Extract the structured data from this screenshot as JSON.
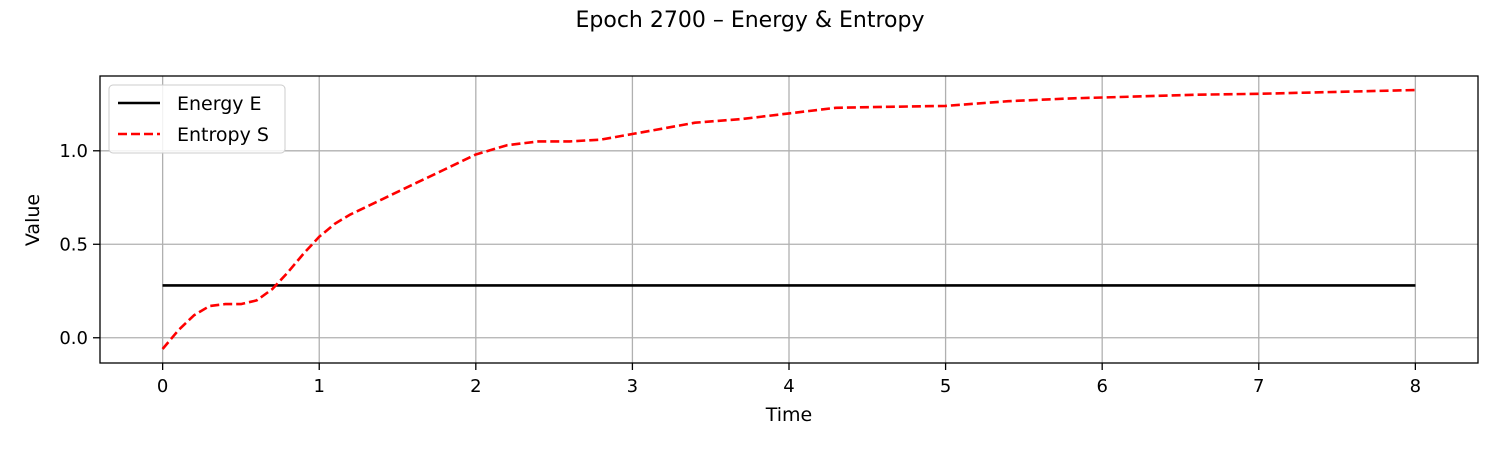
{
  "chart_data": {
    "type": "line",
    "title": "Epoch 2700 – Energy & Entropy",
    "xlabel": "Time",
    "ylabel": "Value",
    "xlim": [
      -0.4,
      8.4
    ],
    "ylim": [
      -0.135,
      1.4
    ],
    "xticks": [
      0,
      1,
      2,
      3,
      4,
      5,
      6,
      7,
      8
    ],
    "xtick_labels": [
      "0",
      "1",
      "2",
      "3",
      "4",
      "5",
      "6",
      "7",
      "8"
    ],
    "yticks": [
      0.0,
      0.5,
      1.0
    ],
    "ytick_labels": [
      "0.0",
      "0.5",
      "1.0"
    ],
    "grid": true,
    "legend_position": "upper left",
    "series": [
      {
        "name": "Energy E",
        "color": "#000000",
        "linestyle": "solid",
        "x": [
          0,
          8
        ],
        "y": [
          0.28,
          0.28
        ]
      },
      {
        "name": "Entropy S",
        "color": "#ff0000",
        "linestyle": "dashed",
        "x": [
          0,
          0.1,
          0.2,
          0.3,
          0.4,
          0.5,
          0.6,
          0.7,
          0.8,
          0.9,
          1.0,
          1.1,
          1.2,
          1.4,
          1.6,
          1.8,
          2.0,
          2.2,
          2.4,
          2.6,
          2.8,
          3.0,
          3.2,
          3.4,
          3.7,
          4.0,
          4.3,
          4.6,
          5.0,
          5.4,
          5.8,
          6.2,
          6.6,
          7.0,
          7.5,
          8.0
        ],
        "y": [
          -0.06,
          0.04,
          0.12,
          0.17,
          0.18,
          0.18,
          0.2,
          0.26,
          0.35,
          0.45,
          0.54,
          0.61,
          0.66,
          0.74,
          0.82,
          0.9,
          0.98,
          1.03,
          1.05,
          1.05,
          1.06,
          1.09,
          1.12,
          1.15,
          1.17,
          1.2,
          1.23,
          1.235,
          1.24,
          1.265,
          1.28,
          1.29,
          1.3,
          1.305,
          1.315,
          1.325
        ]
      }
    ]
  }
}
